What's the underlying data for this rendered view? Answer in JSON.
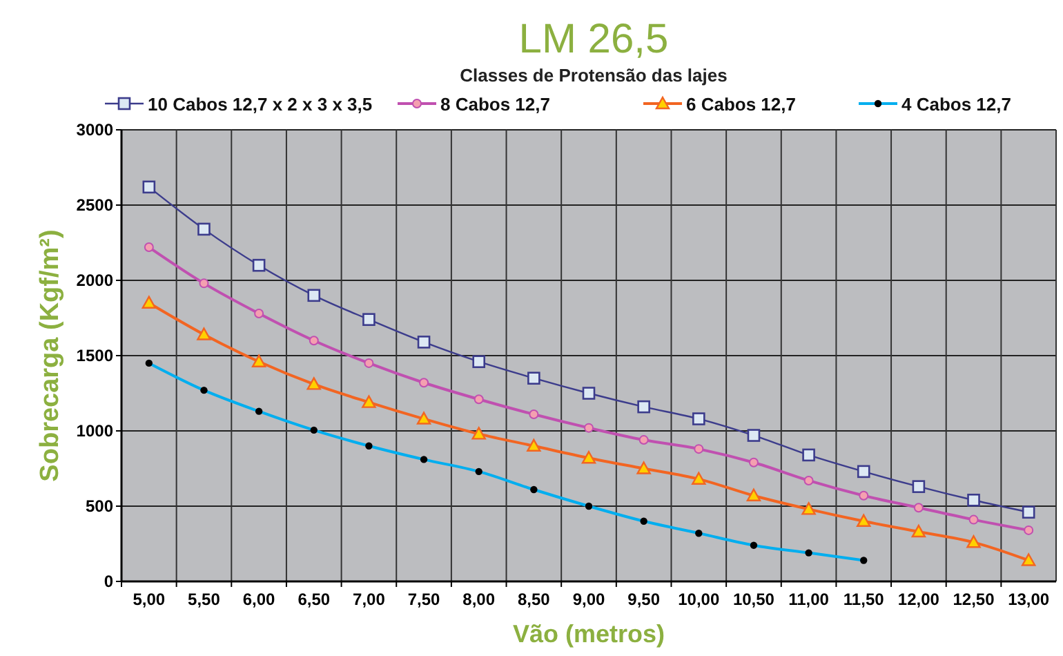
{
  "chart_data": {
    "type": "line",
    "title": "LM 26,5",
    "legend_title": "Classes de Protensão das lajes",
    "xlabel": "Vão (metros)",
    "ylabel": "Sobrecarga (Kgf/m²)",
    "categories": [
      "5,00",
      "5,50",
      "6,00",
      "6,50",
      "7,00",
      "7,50",
      "8,00",
      "8,50",
      "9,00",
      "9,50",
      "10,00",
      "10,50",
      "11,00",
      "11,50",
      "12,00",
      "12,50",
      "13,00"
    ],
    "series": [
      {
        "name": "10 Cabos 12,7 x 2 x 3 x 3,5",
        "color": "#3c3c8c",
        "marker": "square",
        "values": [
          2620,
          2340,
          2100,
          1900,
          1740,
          1590,
          1460,
          1350,
          1250,
          1160,
          1080,
          970,
          840,
          730,
          630,
          540,
          460
        ]
      },
      {
        "name": "8 Cabos 12,7",
        "color": "#c050b0",
        "marker": "circle",
        "values": [
          2220,
          1980,
          1780,
          1600,
          1450,
          1320,
          1210,
          1110,
          1020,
          940,
          880,
          790,
          670,
          570,
          490,
          410,
          340
        ]
      },
      {
        "name": "6 Cabos 12,7",
        "color": "#f26522",
        "marker": "triangle",
        "values": [
          1850,
          1640,
          1460,
          1310,
          1190,
          1080,
          980,
          900,
          820,
          750,
          680,
          570,
          480,
          400,
          330,
          260,
          140
        ]
      },
      {
        "name": "4 Cabos 12,7",
        "color": "#00aeef",
        "marker": "dot",
        "values": [
          1450,
          1270,
          1130,
          1005,
          900,
          810,
          730,
          610,
          500,
          400,
          320,
          240,
          190,
          140,
          null,
          null,
          null
        ]
      }
    ],
    "ylim": [
      0,
      3000
    ],
    "yticks": [
      0,
      500,
      1000,
      1500,
      2000,
      2500,
      3000
    ],
    "grid": true,
    "legend": "top"
  }
}
